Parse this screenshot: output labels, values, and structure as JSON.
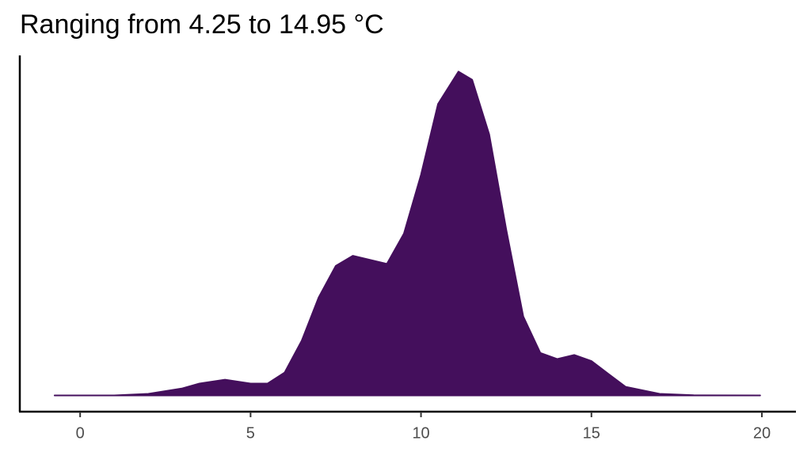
{
  "chart_data": {
    "type": "area",
    "title": "Ranging from 4.25 to 14.95 °C",
    "x": [
      -0.75,
      1,
      2,
      3,
      3.5,
      4.25,
      5,
      5.5,
      6,
      6.5,
      7,
      7.5,
      8,
      8.5,
      9,
      9.5,
      10,
      10.5,
      11.1,
      11.5,
      12,
      12.5,
      13,
      13.5,
      14,
      14.5,
      15,
      15.5,
      16,
      17,
      18,
      19.95
    ],
    "values": [
      0,
      0,
      0.0008,
      0.0035,
      0.0059,
      0.0078,
      0.0059,
      0.0059,
      0.0113,
      0.027,
      0.0485,
      0.064,
      0.069,
      0.067,
      0.065,
      0.08,
      0.109,
      0.144,
      0.16,
      0.156,
      0.129,
      0.082,
      0.039,
      0.021,
      0.018,
      0.02,
      0.017,
      0.0106,
      0.0043,
      0.0008,
      0.0001,
      0
    ],
    "color": "#440f5c",
    "xlim": [
      -1.77,
      21
    ],
    "xticks": [
      0,
      5,
      10,
      15,
      20
    ],
    "ylim": [
      -0.008,
      0.168
    ]
  }
}
